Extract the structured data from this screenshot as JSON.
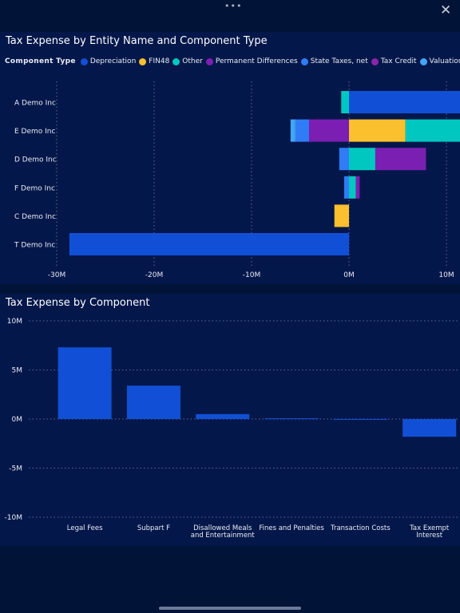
{
  "window": {
    "menu_icon": "more-dots-icon",
    "close_icon": "close-icon",
    "menu_glyph": "•••",
    "close_glyph": "✕"
  },
  "chart_data": [
    {
      "type": "bar",
      "orientation": "horizontal",
      "stacked": true,
      "title": "Tax Expense by Entity Name and Component Type",
      "legend_title": "Component Type",
      "legend_position": "top-left",
      "categories": [
        "A Demo Inc",
        "E Demo Inc",
        "D Demo Inc",
        "F Demo Inc",
        "C Demo Inc",
        "T Demo Inc"
      ],
      "series": [
        {
          "name": "Depreciation",
          "color": "#1150d6",
          "values": [
            11.5,
            0,
            0,
            0,
            0,
            -28.7
          ]
        },
        {
          "name": "FIN48",
          "color": "#fbc02d",
          "values": [
            0,
            5.8,
            0,
            0,
            -1.5,
            0
          ]
        },
        {
          "name": "Other",
          "color": "#00c8c0",
          "values": [
            -0.8,
            5.7,
            2.7,
            0.7,
            0,
            0
          ]
        },
        {
          "name": "Permanent Differences",
          "color": "#7b1fb2",
          "values": [
            0,
            -4.1,
            5.2,
            0.4,
            0,
            0
          ]
        },
        {
          "name": "State Taxes, net",
          "color": "#2f7cf6",
          "values": [
            0,
            -1.4,
            -1.0,
            -0.5,
            0,
            0
          ]
        },
        {
          "name": "Tax Credit",
          "color": "#8e24aa",
          "values": [
            0,
            0,
            0,
            0,
            0,
            0
          ]
        },
        {
          "name": "Valuation Allowance",
          "color": "#42a5f5",
          "values": [
            0,
            -0.5,
            0,
            0,
            0,
            0
          ]
        }
      ],
      "xlim": [
        -33,
        11.5
      ],
      "x_ticks": [
        -30,
        -20,
        -10,
        0,
        10
      ],
      "x_tick_labels": [
        "-30M",
        "-20M",
        "-10M",
        "0M",
        "10M"
      ],
      "grid": "vertical dotted"
    },
    {
      "type": "bar",
      "title": "Tax Expense by Component",
      "categories": [
        "Legal Fees",
        "Subpart F",
        "Disallowed Meals and Entertainment",
        "Fines and Penalties",
        "Transaction Costs",
        "Tax Exempt Interest"
      ],
      "values": [
        7.3,
        3.4,
        0.5,
        0.08,
        -0.05,
        -1.8
      ],
      "color": "#1150d6",
      "ylim": [
        -10,
        10
      ],
      "y_ticks": [
        10,
        5,
        0,
        -5,
        -10
      ],
      "y_tick_labels": [
        "10M",
        "5M",
        "0M",
        "-5M",
        "-10M"
      ],
      "grid": "horizontal dotted"
    }
  ]
}
